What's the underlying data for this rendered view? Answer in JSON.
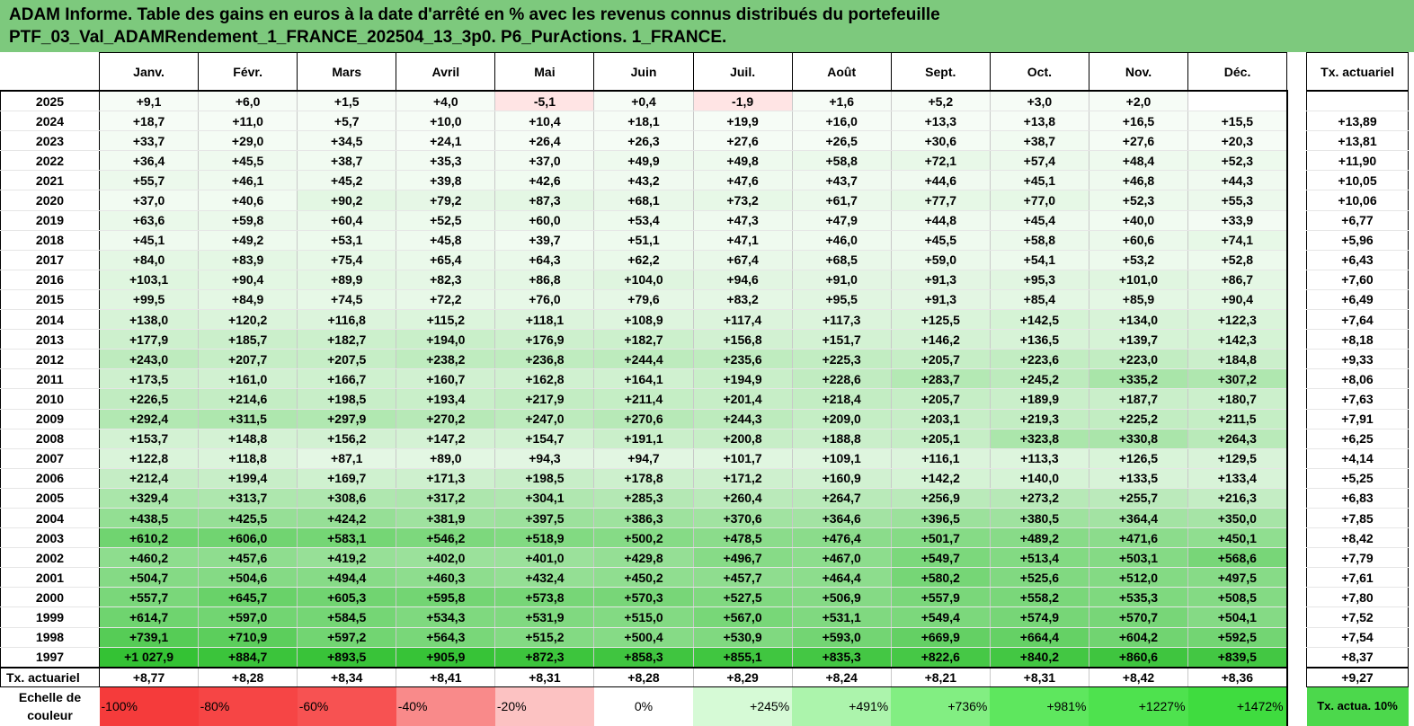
{
  "title": {
    "line1": "ADAM Informe. Table des gains en euros à la date d'arrêté en % avec les revenus connus distribués du portefeuille",
    "line2": "PTF_03_Val_ADAMRendement_1_FRANCE_202504_13_3p0. P6_PurActions. 1_FRANCE."
  },
  "months": [
    "Janv.",
    "Févr.",
    "Mars",
    "Avril",
    "Mai",
    "Juin",
    "Juil.",
    "Août",
    "Sept.",
    "Oct.",
    "Nov.",
    "Déc."
  ],
  "tx_header": "Tx. actuariel",
  "rows": [
    {
      "year": "2025",
      "values": [
        "+9,1",
        "+6,0",
        "+1,5",
        "+4,0",
        "-5,1",
        "+0,4",
        "-1,9",
        "+1,6",
        "+5,2",
        "+3,0",
        "+2,0",
        ""
      ],
      "tx": ""
    },
    {
      "year": "2024",
      "values": [
        "+18,7",
        "+11,0",
        "+5,7",
        "+10,0",
        "+10,4",
        "+18,1",
        "+19,9",
        "+16,0",
        "+13,3",
        "+13,8",
        "+16,5",
        "+15,5"
      ],
      "tx": "+13,89"
    },
    {
      "year": "2023",
      "values": [
        "+33,7",
        "+29,0",
        "+34,5",
        "+24,1",
        "+26,4",
        "+26,3",
        "+27,6",
        "+26,5",
        "+30,6",
        "+38,7",
        "+27,6",
        "+20,3"
      ],
      "tx": "+13,81"
    },
    {
      "year": "2022",
      "values": [
        "+36,4",
        "+45,5",
        "+38,7",
        "+35,3",
        "+37,0",
        "+49,9",
        "+49,8",
        "+58,8",
        "+72,1",
        "+57,4",
        "+48,4",
        "+52,3"
      ],
      "tx": "+11,90"
    },
    {
      "year": "2021",
      "values": [
        "+55,7",
        "+46,1",
        "+45,2",
        "+39,8",
        "+42,6",
        "+43,2",
        "+47,6",
        "+43,7",
        "+44,6",
        "+45,1",
        "+46,8",
        "+44,3"
      ],
      "tx": "+10,05"
    },
    {
      "year": "2020",
      "values": [
        "+37,0",
        "+40,6",
        "+90,2",
        "+79,2",
        "+87,3",
        "+68,1",
        "+73,2",
        "+61,7",
        "+77,7",
        "+77,0",
        "+52,3",
        "+55,3"
      ],
      "tx": "+10,06"
    },
    {
      "year": "2019",
      "values": [
        "+63,6",
        "+59,8",
        "+60,4",
        "+52,5",
        "+60,0",
        "+53,4",
        "+47,3",
        "+47,9",
        "+44,8",
        "+45,4",
        "+40,0",
        "+33,9"
      ],
      "tx": "+6,77"
    },
    {
      "year": "2018",
      "values": [
        "+45,1",
        "+49,2",
        "+53,1",
        "+45,8",
        "+39,7",
        "+51,1",
        "+47,1",
        "+46,0",
        "+45,5",
        "+58,8",
        "+60,6",
        "+74,1"
      ],
      "tx": "+5,96"
    },
    {
      "year": "2017",
      "values": [
        "+84,0",
        "+83,9",
        "+75,4",
        "+65,4",
        "+64,3",
        "+62,2",
        "+67,4",
        "+68,5",
        "+59,0",
        "+54,1",
        "+53,2",
        "+52,8"
      ],
      "tx": "+6,43"
    },
    {
      "year": "2016",
      "values": [
        "+103,1",
        "+90,4",
        "+89,9",
        "+82,3",
        "+86,8",
        "+104,0",
        "+94,6",
        "+91,0",
        "+91,3",
        "+95,3",
        "+101,0",
        "+86,7"
      ],
      "tx": "+7,60"
    },
    {
      "year": "2015",
      "values": [
        "+99,5",
        "+84,9",
        "+74,5",
        "+72,2",
        "+76,0",
        "+79,6",
        "+83,2",
        "+95,5",
        "+91,3",
        "+85,4",
        "+85,9",
        "+90,4"
      ],
      "tx": "+6,49"
    },
    {
      "year": "2014",
      "values": [
        "+138,0",
        "+120,2",
        "+116,8",
        "+115,2",
        "+118,1",
        "+108,9",
        "+117,4",
        "+117,3",
        "+125,5",
        "+142,5",
        "+134,0",
        "+122,3"
      ],
      "tx": "+7,64"
    },
    {
      "year": "2013",
      "values": [
        "+177,9",
        "+185,7",
        "+182,7",
        "+194,0",
        "+176,9",
        "+182,7",
        "+156,8",
        "+151,7",
        "+146,2",
        "+136,5",
        "+139,7",
        "+142,3"
      ],
      "tx": "+8,18"
    },
    {
      "year": "2012",
      "values": [
        "+243,0",
        "+207,7",
        "+207,5",
        "+238,2",
        "+236,8",
        "+244,4",
        "+235,6",
        "+225,3",
        "+205,7",
        "+223,6",
        "+223,0",
        "+184,8"
      ],
      "tx": "+9,33"
    },
    {
      "year": "2011",
      "values": [
        "+173,5",
        "+161,0",
        "+166,7",
        "+160,7",
        "+162,8",
        "+164,1",
        "+194,9",
        "+228,6",
        "+283,7",
        "+245,2",
        "+335,2",
        "+307,2"
      ],
      "tx": "+8,06"
    },
    {
      "year": "2010",
      "values": [
        "+226,5",
        "+214,6",
        "+198,5",
        "+193,4",
        "+217,9",
        "+211,4",
        "+201,4",
        "+218,4",
        "+205,7",
        "+189,9",
        "+187,7",
        "+180,7"
      ],
      "tx": "+7,63"
    },
    {
      "year": "2009",
      "values": [
        "+292,4",
        "+311,5",
        "+297,9",
        "+270,2",
        "+247,0",
        "+270,6",
        "+244,3",
        "+209,0",
        "+203,1",
        "+219,3",
        "+225,2",
        "+211,5"
      ],
      "tx": "+7,91"
    },
    {
      "year": "2008",
      "values": [
        "+153,7",
        "+148,8",
        "+156,2",
        "+147,2",
        "+154,7",
        "+191,1",
        "+200,8",
        "+188,8",
        "+205,1",
        "+323,8",
        "+330,8",
        "+264,3"
      ],
      "tx": "+6,25"
    },
    {
      "year": "2007",
      "values": [
        "+122,8",
        "+118,8",
        "+87,1",
        "+89,0",
        "+94,3",
        "+94,7",
        "+101,7",
        "+109,1",
        "+116,1",
        "+113,3",
        "+126,5",
        "+129,5"
      ],
      "tx": "+4,14"
    },
    {
      "year": "2006",
      "values": [
        "+212,4",
        "+199,4",
        "+169,7",
        "+171,3",
        "+198,5",
        "+178,8",
        "+171,2",
        "+160,9",
        "+142,2",
        "+140,0",
        "+133,5",
        "+133,4"
      ],
      "tx": "+5,25"
    },
    {
      "year": "2005",
      "values": [
        "+329,4",
        "+313,7",
        "+308,6",
        "+317,2",
        "+304,1",
        "+285,3",
        "+260,4",
        "+264,7",
        "+256,9",
        "+273,2",
        "+255,7",
        "+216,3"
      ],
      "tx": "+6,83"
    },
    {
      "year": "2004",
      "values": [
        "+438,5",
        "+425,5",
        "+424,2",
        "+381,9",
        "+397,5",
        "+386,3",
        "+370,6",
        "+364,6",
        "+396,5",
        "+380,5",
        "+364,4",
        "+350,0"
      ],
      "tx": "+7,85"
    },
    {
      "year": "2003",
      "values": [
        "+610,2",
        "+606,0",
        "+583,1",
        "+546,2",
        "+518,9",
        "+500,2",
        "+478,5",
        "+476,4",
        "+501,7",
        "+489,2",
        "+471,6",
        "+450,1"
      ],
      "tx": "+8,42"
    },
    {
      "year": "2002",
      "values": [
        "+460,2",
        "+457,6",
        "+419,2",
        "+402,0",
        "+401,0",
        "+429,8",
        "+496,7",
        "+467,0",
        "+549,7",
        "+513,4",
        "+503,1",
        "+568,6"
      ],
      "tx": "+7,79"
    },
    {
      "year": "2001",
      "values": [
        "+504,7",
        "+504,6",
        "+494,4",
        "+460,3",
        "+432,4",
        "+450,2",
        "+457,7",
        "+464,4",
        "+580,2",
        "+525,6",
        "+512,0",
        "+497,5"
      ],
      "tx": "+7,61"
    },
    {
      "year": "2000",
      "values": [
        "+557,7",
        "+645,7",
        "+605,3",
        "+595,8",
        "+573,8",
        "+570,3",
        "+527,5",
        "+506,9",
        "+557,9",
        "+558,2",
        "+535,3",
        "+508,5"
      ],
      "tx": "+7,80"
    },
    {
      "year": "1999",
      "values": [
        "+614,7",
        "+597,0",
        "+584,5",
        "+534,3",
        "+531,9",
        "+515,0",
        "+567,0",
        "+531,1",
        "+549,4",
        "+574,9",
        "+570,7",
        "+504,1"
      ],
      "tx": "+7,52"
    },
    {
      "year": "1998",
      "values": [
        "+739,1",
        "+710,9",
        "+597,2",
        "+564,3",
        "+515,2",
        "+500,4",
        "+530,9",
        "+593,0",
        "+669,9",
        "+664,4",
        "+604,2",
        "+592,5"
      ],
      "tx": "+7,54"
    },
    {
      "year": "1997",
      "values": [
        "+1 027,9",
        "+884,7",
        "+893,5",
        "+905,9",
        "+872,3",
        "+858,3",
        "+855,1",
        "+835,3",
        "+822,6",
        "+840,2",
        "+860,6",
        "+839,5"
      ],
      "tx": "+8,37"
    }
  ],
  "tx_row": {
    "label": "Tx. actuariel",
    "values": [
      "+8,77",
      "+8,28",
      "+8,34",
      "+8,41",
      "+8,31",
      "+8,28",
      "+8,29",
      "+8,24",
      "+8,21",
      "+8,31",
      "+8,42",
      "+8,36"
    ],
    "tx": "+9,27"
  },
  "scale": {
    "label": "Echelle de couleur",
    "items": [
      {
        "text": "-100%",
        "color": "#f53b3b"
      },
      {
        "text": "-80%",
        "color": "#f64545"
      },
      {
        "text": "-60%",
        "color": "#f75252"
      },
      {
        "text": "-40%",
        "color": "#f98a8a"
      },
      {
        "text": "-20%",
        "color": "#fcc2c2"
      },
      {
        "text": "0%",
        "color": "#ffffff"
      },
      {
        "text": "+245%",
        "color": "#d6fad6"
      },
      {
        "text": "+491%",
        "color": "#acf4ac"
      },
      {
        "text": "+736%",
        "color": "#82ee82"
      },
      {
        "text": "+981%",
        "color": "#5ee75e"
      },
      {
        "text": "+1227%",
        "color": "#4ee24e"
      },
      {
        "text": "+1472%",
        "color": "#3fdc3f"
      }
    ],
    "tx_label": "Tx. actua. 10%"
  },
  "colors": {
    "title_bg": "#7dc97d",
    "negative": "#ffe4e4",
    "pos_max_pct": 1472,
    "pos_max_color": "#34c234"
  }
}
